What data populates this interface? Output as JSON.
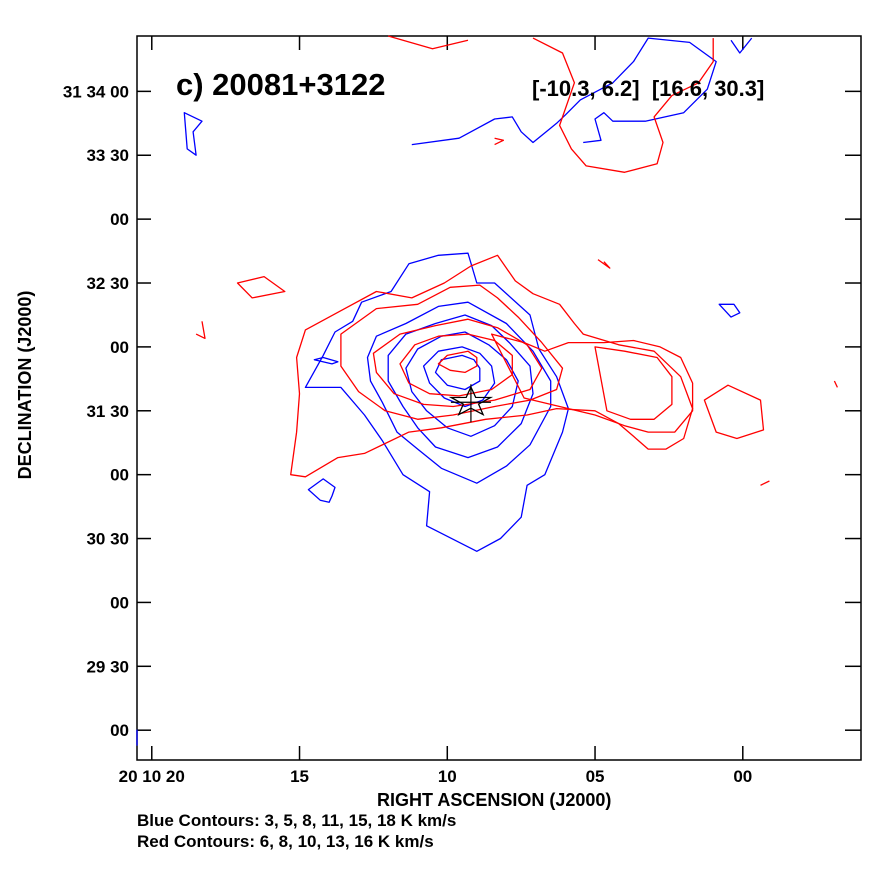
{
  "chart_data": {
    "type": "contour",
    "title": "c) 20081+3122",
    "velocity_ranges": "[-10.3, 6.2]  [16.6, 30.3]",
    "xlabel": "RIGHT ASCENSION (J2000)",
    "ylabel": "DECLINATION (J2000)",
    "x_unit": "seconds of RA (20h 10m)",
    "x_ticks": [
      {
        "value": 20,
        "label": "20 10 20"
      },
      {
        "value": 15,
        "label": "15"
      },
      {
        "value": 10,
        "label": "10"
      },
      {
        "value": 5,
        "label": "05"
      },
      {
        "value": 0,
        "label": "00"
      }
    ],
    "y_unit": "arcsec offset from +31 29 00",
    "y_ticks": [
      {
        "value": 300,
        "label": "31 34 00"
      },
      {
        "value": 270,
        "label": "33 30"
      },
      {
        "value": 240,
        "label": "00"
      },
      {
        "value": 210,
        "label": "32 30"
      },
      {
        "value": 180,
        "label": "00"
      },
      {
        "value": 150,
        "label": "31 30"
      },
      {
        "value": 120,
        "label": "00"
      },
      {
        "value": 90,
        "label": "30 30"
      },
      {
        "value": 60,
        "label": "00"
      },
      {
        "value": 30,
        "label": "29 30"
      },
      {
        "value": 0,
        "label": "00"
      }
    ],
    "xlim": [
      20.5,
      -4.0
    ],
    "ylim": [
      -14.0,
      326.0
    ],
    "source_marker": {
      "x": 9.2,
      "y": 154
    },
    "blue_levels": [
      3,
      5,
      8,
      11,
      15,
      18
    ],
    "red_levels": [
      6,
      8,
      10,
      13,
      16
    ],
    "colors": {
      "blue": "#0000ff",
      "red": "#ff0000",
      "marker": "#000000"
    },
    "blue_caption": "Blue Contours: 3, 5, 8, 11, 15, 18 K km/s",
    "red_caption": "Red Contours: 6, 8, 10, 13, 16 K km/s",
    "blue_contours": [
      [
        [
          9.3,
          224
        ],
        [
          10.3,
          223
        ],
        [
          11.3,
          219
        ],
        [
          11.9,
          206
        ],
        [
          12.9,
          201
        ],
        [
          13.2,
          192
        ],
        [
          13.8,
          187
        ],
        [
          14.2,
          176
        ],
        [
          14.8,
          161
        ],
        [
          13.6,
          161
        ],
        [
          12.8,
          148
        ],
        [
          12.2,
          136
        ],
        [
          11.5,
          120
        ],
        [
          10.6,
          112
        ],
        [
          10.7,
          96
        ],
        [
          9.0,
          84
        ],
        [
          8.2,
          90
        ],
        [
          7.5,
          100
        ],
        [
          7.3,
          115
        ],
        [
          6.7,
          120
        ],
        [
          6.1,
          140
        ],
        [
          5.9,
          151
        ],
        [
          6.3,
          166
        ],
        [
          6.9,
          179
        ],
        [
          7.2,
          195
        ],
        [
          8.4,
          210
        ],
        [
          9.0,
          210
        ]
      ],
      [
        [
          9.3,
          201
        ],
        [
          10.3,
          199
        ],
        [
          11.4,
          191
        ],
        [
          12.4,
          185
        ],
        [
          12.7,
          175
        ],
        [
          12.6,
          164
        ],
        [
          12.2,
          154
        ],
        [
          11.7,
          140
        ],
        [
          11.0,
          132
        ],
        [
          10.2,
          123
        ],
        [
          9.0,
          116
        ],
        [
          8.0,
          124
        ],
        [
          7.2,
          134
        ],
        [
          6.5,
          152
        ],
        [
          6.5,
          164
        ],
        [
          7.1,
          178
        ],
        [
          8.0,
          191
        ]
      ],
      [
        [
          9.4,
          195
        ],
        [
          10.4,
          191
        ],
        [
          11.4,
          186
        ],
        [
          12.0,
          176
        ],
        [
          12.0,
          164
        ],
        [
          11.5,
          152
        ],
        [
          11.0,
          142
        ],
        [
          10.4,
          133
        ],
        [
          9.3,
          128
        ],
        [
          8.3,
          133
        ],
        [
          7.5,
          144
        ],
        [
          7.1,
          158
        ],
        [
          7.2,
          171
        ],
        [
          7.9,
          182
        ],
        [
          8.5,
          190
        ]
      ],
      [
        [
          9.4,
          187
        ],
        [
          10.2,
          185
        ],
        [
          11.0,
          179
        ],
        [
          11.4,
          170
        ],
        [
          11.2,
          159
        ],
        [
          10.7,
          150
        ],
        [
          10.0,
          142
        ],
        [
          9.2,
          138
        ],
        [
          8.4,
          143
        ],
        [
          7.8,
          152
        ],
        [
          7.6,
          164
        ],
        [
          8.0,
          174
        ],
        [
          8.6,
          181
        ]
      ],
      [
        [
          9.5,
          180
        ],
        [
          10.3,
          178
        ],
        [
          10.8,
          171
        ],
        [
          10.6,
          163
        ],
        [
          10.1,
          156
        ],
        [
          9.4,
          152
        ],
        [
          8.8,
          155
        ],
        [
          8.4,
          163
        ],
        [
          8.5,
          171
        ],
        [
          8.9,
          177
        ]
      ],
      [
        [
          9.5,
          176
        ],
        [
          10.2,
          174
        ],
        [
          10.4,
          168
        ],
        [
          10.0,
          162
        ],
        [
          9.4,
          160
        ],
        [
          8.9,
          164
        ],
        [
          8.9,
          170
        ],
        [
          9.1,
          174
        ]
      ],
      [
        [
          14.2,
          118
        ],
        [
          13.8,
          114
        ],
        [
          13.9,
          110
        ],
        [
          14.0,
          107
        ],
        [
          14.3,
          108
        ],
        [
          14.7,
          113
        ]
      ],
      [
        [
          14.5,
          174
        ],
        [
          13.9,
          172
        ],
        [
          13.7,
          173
        ],
        [
          14.2,
          175
        ]
      ],
      [
        [
          20.8,
          0
        ],
        [
          21.3,
          -3
        ],
        [
          20.8,
          -7
        ],
        [
          21.0,
          -2
        ]
      ],
      [
        [
          18.3,
          286
        ],
        [
          18.6,
          281
        ],
        [
          18.5,
          270
        ],
        [
          18.8,
          273
        ],
        [
          18.9,
          290
        ]
      ],
      [
        [
          11.2,
          275
        ],
        [
          9.6,
          278
        ],
        [
          8.4,
          287
        ],
        [
          7.8,
          288
        ],
        [
          7.5,
          281
        ],
        [
          7.1,
          276
        ],
        [
          6.3,
          285
        ],
        [
          6.0,
          289
        ],
        [
          5.5,
          296
        ],
        [
          4.4,
          304
        ],
        [
          3.7,
          314
        ],
        [
          3.2,
          325
        ],
        [
          1.8,
          323
        ],
        [
          0.9,
          314
        ],
        [
          1.2,
          301
        ],
        [
          2.0,
          290
        ],
        [
          3.3,
          286
        ],
        [
          4.4,
          286
        ],
        [
          4.7,
          290
        ],
        [
          5.0,
          287
        ],
        [
          4.8,
          277
        ],
        [
          5.4,
          276
        ]
      ],
      [
        [
          0.8,
          200
        ],
        [
          0.4,
          194
        ],
        [
          0.1,
          196
        ],
        [
          0.3,
          200
        ]
      ],
      [
        [
          0.4,
          324
        ],
        [
          0.1,
          318
        ],
        [
          -0.3,
          325
        ]
      ]
    ],
    "red_contours": [
      [
        [
          8.3,
          223
        ],
        [
          9.2,
          218
        ],
        [
          10.1,
          210
        ],
        [
          11.2,
          203
        ],
        [
          12.4,
          206
        ],
        [
          13.6,
          197
        ],
        [
          14.8,
          188
        ],
        [
          15.1,
          175
        ],
        [
          15.0,
          158
        ],
        [
          15.1,
          140
        ],
        [
          15.3,
          120
        ],
        [
          14.8,
          119
        ],
        [
          13.7,
          128
        ],
        [
          12.8,
          130
        ],
        [
          11.3,
          140
        ],
        [
          10.2,
          142
        ],
        [
          8.7,
          146
        ],
        [
          7.3,
          148
        ],
        [
          6.3,
          151
        ],
        [
          5.0,
          150
        ],
        [
          4.2,
          144
        ],
        [
          3.7,
          138
        ],
        [
          3.2,
          132
        ],
        [
          2.6,
          132
        ],
        [
          2.0,
          137
        ],
        [
          1.7,
          151
        ],
        [
          2.1,
          166
        ],
        [
          3.0,
          178
        ],
        [
          4.2,
          181
        ],
        [
          5.4,
          186
        ],
        [
          5.7,
          191
        ],
        [
          6.2,
          200
        ],
        [
          7.1,
          205
        ],
        [
          7.7,
          211
        ]
      ],
      [
        [
          8.9,
          209
        ],
        [
          9.9,
          208
        ],
        [
          11.0,
          200
        ],
        [
          12.4,
          198
        ],
        [
          13.6,
          186
        ],
        [
          13.6,
          171
        ],
        [
          13.0,
          159
        ],
        [
          12.1,
          150
        ],
        [
          11.0,
          146
        ],
        [
          9.8,
          148
        ],
        [
          8.4,
          152
        ],
        [
          7.2,
          155
        ],
        [
          6.3,
          160
        ],
        [
          6.1,
          170
        ],
        [
          6.8,
          182
        ],
        [
          7.6,
          194
        ],
        [
          8.3,
          203
        ]
      ],
      [
        [
          9.3,
          193
        ],
        [
          10.4,
          190
        ],
        [
          11.6,
          186
        ],
        [
          12.5,
          177
        ],
        [
          12.4,
          168
        ],
        [
          11.8,
          158
        ],
        [
          10.8,
          153
        ],
        [
          9.8,
          152
        ],
        [
          8.4,
          155
        ],
        [
          7.2,
          160
        ],
        [
          6.8,
          170
        ],
        [
          7.3,
          181
        ],
        [
          8.3,
          189
        ]
      ],
      [
        [
          9.3,
          186
        ],
        [
          10.3,
          185
        ],
        [
          11.1,
          181
        ],
        [
          11.6,
          172
        ],
        [
          11.3,
          163
        ],
        [
          10.6,
          158
        ],
        [
          9.6,
          157
        ],
        [
          8.5,
          160
        ],
        [
          7.8,
          167
        ],
        [
          7.8,
          176
        ],
        [
          8.4,
          183
        ]
      ],
      [
        [
          9.3,
          178
        ],
        [
          10.0,
          176
        ],
        [
          10.3,
          172
        ],
        [
          9.9,
          169
        ],
        [
          9.4,
          168
        ],
        [
          9.0,
          171
        ],
        [
          9.0,
          175
        ]
      ],
      [
        [
          8.5,
          186
        ],
        [
          7.4,
          182
        ],
        [
          6.7,
          178
        ],
        [
          5.9,
          182
        ],
        [
          4.7,
          182
        ],
        [
          3.7,
          183
        ],
        [
          2.8,
          180
        ],
        [
          2.1,
          175
        ],
        [
          1.7,
          163
        ],
        [
          1.7,
          150
        ],
        [
          2.3,
          140
        ],
        [
          3.2,
          140
        ],
        [
          4.0,
          143
        ],
        [
          5.0,
          148
        ],
        [
          6.2,
          152
        ],
        [
          7.4,
          156
        ]
      ],
      [
        [
          5.0,
          180
        ],
        [
          4.0,
          178
        ],
        [
          2.9,
          175
        ],
        [
          2.4,
          166
        ],
        [
          2.4,
          153
        ],
        [
          3.0,
          146
        ],
        [
          3.8,
          146
        ],
        [
          4.6,
          150
        ]
      ],
      [
        [
          16.2,
          213
        ],
        [
          17.1,
          210
        ],
        [
          16.6,
          203
        ],
        [
          15.5,
          206
        ]
      ],
      [
        [
          18.3,
          192
        ],
        [
          18.2,
          184
        ],
        [
          18.5,
          186
        ]
      ],
      [
        [
          0.5,
          162
        ],
        [
          1.3,
          155
        ],
        [
          0.9,
          140
        ],
        [
          0.2,
          137
        ],
        [
          -0.7,
          141
        ],
        [
          -0.6,
          155
        ]
      ],
      [
        [
          7.1,
          325
        ],
        [
          6.1,
          318
        ],
        [
          5.7,
          304
        ],
        [
          6.2,
          284
        ],
        [
          5.8,
          273
        ],
        [
          5.3,
          265
        ],
        [
          4.0,
          262
        ],
        [
          2.9,
          266
        ],
        [
          2.7,
          276
        ],
        [
          3.0,
          288
        ],
        [
          2.4,
          298
        ],
        [
          1.5,
          304
        ],
        [
          1.0,
          314
        ],
        [
          1.0,
          325
        ]
      ],
      [
        [
          8.4,
          278
        ],
        [
          8.1,
          277
        ],
        [
          8.4,
          275
        ]
      ],
      [
        [
          4.9,
          221
        ],
        [
          4.5,
          217
        ],
        [
          4.7,
          220
        ]
      ],
      [
        [
          -0.9,
          117
        ],
        [
          -0.6,
          115
        ]
      ],
      [
        [
          -3.1,
          164
        ],
        [
          -3.2,
          161
        ]
      ],
      [
        [
          12.0,
          326
        ],
        [
          10.5,
          320
        ],
        [
          9.3,
          324
        ]
      ]
    ]
  }
}
